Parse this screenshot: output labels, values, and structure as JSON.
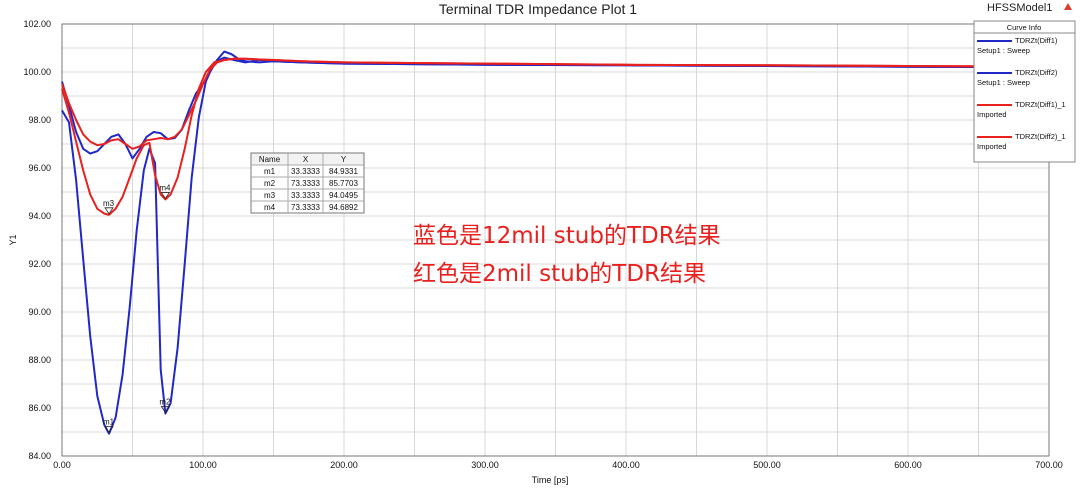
{
  "chart_data": {
    "type": "line",
    "title": "Terminal TDR Impedance Plot 1",
    "model_label": "HFSSModel1",
    "xlabel": "Time [ps]",
    "ylabel": "Y1",
    "xlim": [
      0,
      700
    ],
    "ylim": [
      84,
      102
    ],
    "x_ticks": [
      "0.00",
      "100.00",
      "200.00",
      "300.00",
      "400.00",
      "500.00",
      "600.00",
      "700.00"
    ],
    "y_ticks": [
      "84.00",
      "86.00",
      "88.00",
      "90.00",
      "92.00",
      "94.00",
      "96.00",
      "98.00",
      "100.00",
      "102.00"
    ],
    "grid": true,
    "legend_title": "Curve Info",
    "legend_position": "top-right",
    "series": [
      {
        "name": "TDRZt(Diff1)",
        "source": "Setup1 : Sweep",
        "color": "#2028c8",
        "points": [
          [
            0,
            98.4
          ],
          [
            5,
            97.9
          ],
          [
            10,
            95.5
          ],
          [
            15,
            92.2
          ],
          [
            20,
            89.0
          ],
          [
            25,
            86.5
          ],
          [
            30,
            85.3
          ],
          [
            33.33,
            84.93
          ],
          [
            38,
            85.6
          ],
          [
            43,
            87.4
          ],
          [
            48,
            90.2
          ],
          [
            53,
            93.4
          ],
          [
            58,
            95.9
          ],
          [
            62,
            96.8
          ],
          [
            66,
            96.2
          ],
          [
            70,
            87.6
          ],
          [
            73.33,
            85.77
          ],
          [
            77,
            86.2
          ],
          [
            82,
            88.5
          ],
          [
            87,
            92.0
          ],
          [
            92,
            95.6
          ],
          [
            97,
            98.1
          ],
          [
            102,
            99.6
          ],
          [
            108,
            100.4
          ],
          [
            115,
            100.6
          ],
          [
            122,
            100.5
          ],
          [
            130,
            100.4
          ],
          [
            140,
            100.5
          ],
          [
            150,
            100.45
          ],
          [
            170,
            100.4
          ],
          [
            200,
            100.35
          ],
          [
            300,
            100.3
          ],
          [
            400,
            100.28
          ],
          [
            500,
            100.25
          ],
          [
            600,
            100.22
          ],
          [
            700,
            100.2
          ]
        ]
      },
      {
        "name": "TDRZt(Diff2)",
        "source": "Setup1 : Sweep",
        "color": "#2028c8",
        "points": [
          [
            0,
            99.6
          ],
          [
            5,
            98.6
          ],
          [
            10,
            97.5
          ],
          [
            15,
            96.8
          ],
          [
            20,
            96.6
          ],
          [
            25,
            96.7
          ],
          [
            30,
            97.0
          ],
          [
            35,
            97.3
          ],
          [
            40,
            97.4
          ],
          [
            45,
            97.0
          ],
          [
            50,
            96.4
          ],
          [
            55,
            96.8
          ],
          [
            60,
            97.3
          ],
          [
            65,
            97.5
          ],
          [
            70,
            97.45
          ],
          [
            75,
            97.2
          ],
          [
            80,
            97.25
          ],
          [
            85,
            97.6
          ],
          [
            90,
            98.4
          ],
          [
            95,
            99.1
          ],
          [
            100,
            99.5
          ],
          [
            105,
            100.0
          ],
          [
            110,
            100.5
          ],
          [
            115,
            100.85
          ],
          [
            120,
            100.75
          ],
          [
            125,
            100.55
          ],
          [
            130,
            100.45
          ],
          [
            140,
            100.4
          ],
          [
            150,
            100.45
          ],
          [
            170,
            100.4
          ],
          [
            200,
            100.35
          ],
          [
            300,
            100.3
          ],
          [
            400,
            100.28
          ],
          [
            500,
            100.25
          ],
          [
            600,
            100.22
          ],
          [
            700,
            100.2
          ]
        ]
      },
      {
        "name": "TDRZt(Diff1)_1",
        "source": "Imported",
        "color": "#e8201e",
        "points": [
          [
            0,
            99.3
          ],
          [
            5,
            98.3
          ],
          [
            10,
            97.1
          ],
          [
            15,
            95.9
          ],
          [
            20,
            94.9
          ],
          [
            25,
            94.3
          ],
          [
            30,
            94.1
          ],
          [
            33.33,
            94.05
          ],
          [
            38,
            94.3
          ],
          [
            43,
            94.8
          ],
          [
            48,
            95.6
          ],
          [
            53,
            96.4
          ],
          [
            58,
            96.95
          ],
          [
            62,
            97.05
          ],
          [
            66,
            95.7
          ],
          [
            70,
            94.9
          ],
          [
            73.33,
            94.69
          ],
          [
            77,
            94.9
          ],
          [
            82,
            95.6
          ],
          [
            87,
            96.8
          ],
          [
            92,
            98.2
          ],
          [
            97,
            99.3
          ],
          [
            102,
            100.0
          ],
          [
            108,
            100.4
          ],
          [
            115,
            100.5
          ],
          [
            122,
            100.55
          ],
          [
            130,
            100.55
          ],
          [
            140,
            100.52
          ],
          [
            150,
            100.5
          ],
          [
            170,
            100.45
          ],
          [
            200,
            100.4
          ],
          [
            300,
            100.35
          ],
          [
            400,
            100.3
          ],
          [
            500,
            100.28
          ],
          [
            600,
            100.25
          ],
          [
            700,
            100.22
          ]
        ]
      },
      {
        "name": "TDRZt(Diff2)_1",
        "source": "Imported",
        "color": "#e8201e",
        "points": [
          [
            0,
            99.5
          ],
          [
            5,
            98.7
          ],
          [
            10,
            98.0
          ],
          [
            15,
            97.4
          ],
          [
            20,
            97.1
          ],
          [
            25,
            96.95
          ],
          [
            30,
            97.0
          ],
          [
            35,
            97.15
          ],
          [
            40,
            97.2
          ],
          [
            45,
            97.0
          ],
          [
            50,
            96.8
          ],
          [
            55,
            96.9
          ],
          [
            60,
            97.15
          ],
          [
            65,
            97.2
          ],
          [
            70,
            97.25
          ],
          [
            75,
            97.2
          ],
          [
            80,
            97.3
          ],
          [
            85,
            97.6
          ],
          [
            90,
            98.2
          ],
          [
            95,
            98.8
          ],
          [
            100,
            99.5
          ],
          [
            105,
            100.1
          ],
          [
            110,
            100.4
          ],
          [
            115,
            100.5
          ],
          [
            122,
            100.55
          ],
          [
            130,
            100.55
          ],
          [
            140,
            100.52
          ],
          [
            150,
            100.5
          ],
          [
            170,
            100.45
          ],
          [
            200,
            100.4
          ],
          [
            300,
            100.35
          ],
          [
            400,
            100.3
          ],
          [
            500,
            100.28
          ],
          [
            600,
            100.25
          ],
          [
            700,
            100.22
          ]
        ]
      }
    ],
    "markers": [
      {
        "name": "m1",
        "x": 33.3333,
        "y": 84.9331
      },
      {
        "name": "m2",
        "x": 73.3333,
        "y": 85.7703
      },
      {
        "name": "m3",
        "x": 33.3333,
        "y": 94.0495
      },
      {
        "name": "m4",
        "x": 73.3333,
        "y": 94.6892
      }
    ],
    "marker_table": {
      "headers": [
        "Name",
        "X",
        "Y"
      ],
      "rows": [
        [
          "m1",
          "33.3333",
          "84.9331"
        ],
        [
          "m2",
          "73.3333",
          "85.7703"
        ],
        [
          "m3",
          "33.3333",
          "94.0495"
        ],
        [
          "m4",
          "73.3333",
          "94.6892"
        ]
      ]
    },
    "annotation_lines": [
      "蓝色是12mil stub的TDR结果",
      "红色是2mil stub的TDR结果"
    ]
  }
}
